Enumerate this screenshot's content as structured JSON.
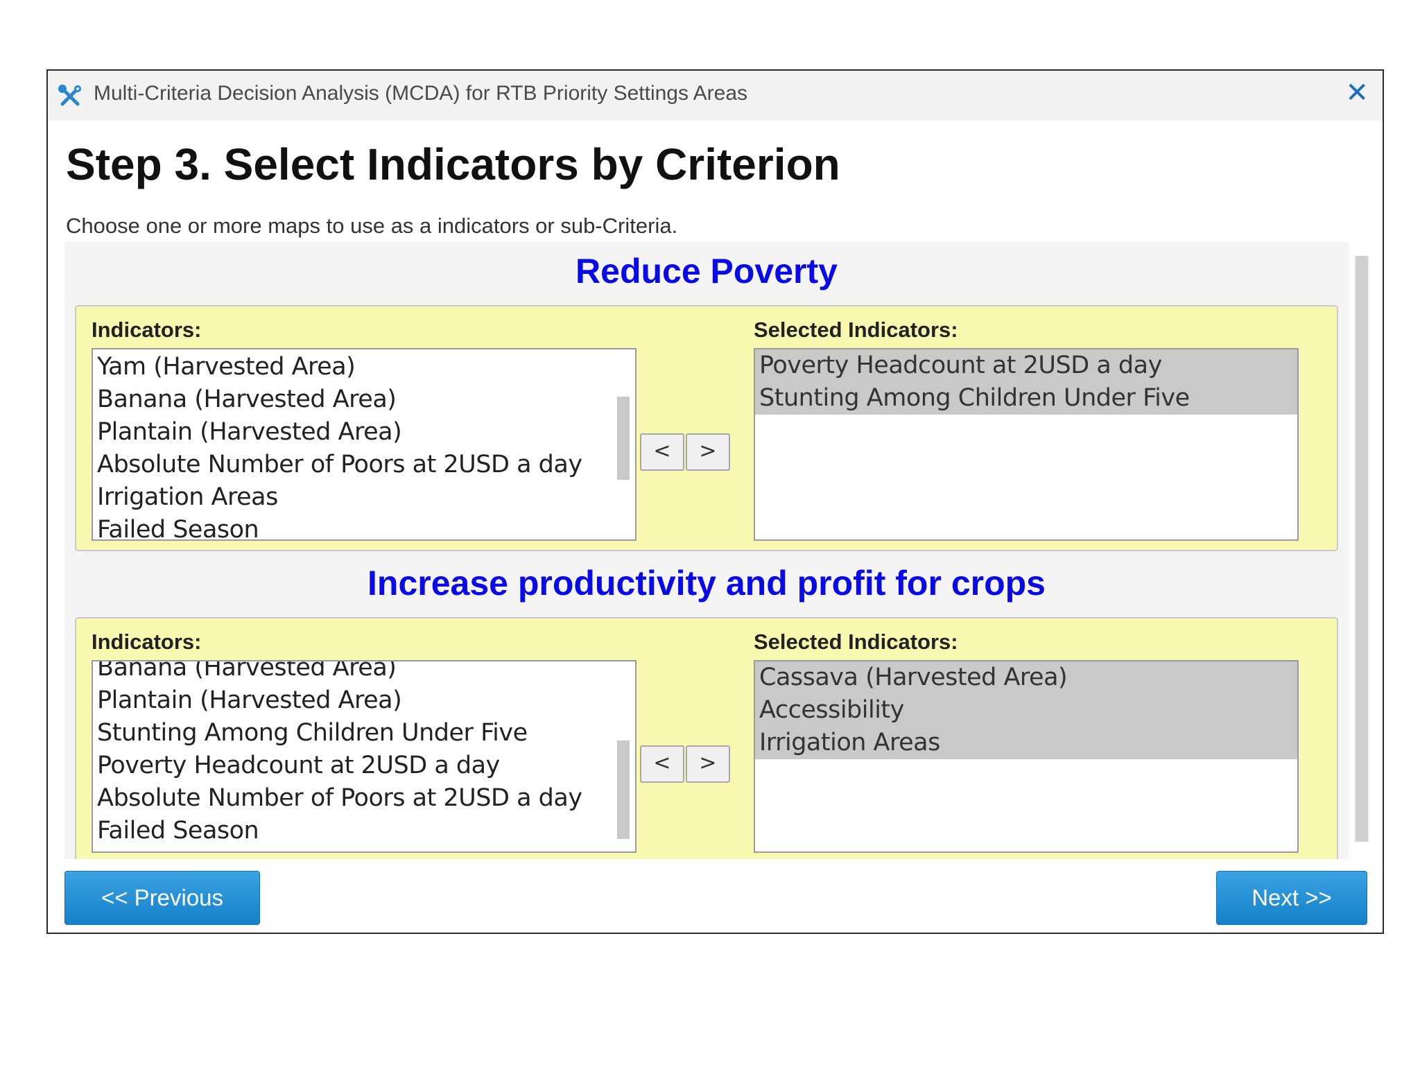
{
  "window": {
    "title": "Multi-Criteria Decision Analysis (MCDA) for RTB Priority Settings Areas",
    "close_icon": "close-icon",
    "app_icon": "tools-icon"
  },
  "step": {
    "title": "Step 3. Select Indicators by Criterion",
    "description": "Choose one or more maps to use as a indicators or sub-Criteria."
  },
  "criteria": [
    {
      "title": "Reduce Poverty",
      "indicators_label": "Indicators:",
      "selected_label": "Selected Indicators:",
      "indicators": [
        "Yam (Harvested Area)",
        "Banana (Harvested Area)",
        "Plantain (Harvested Area)",
        "Absolute Number of Poors at 2USD a day",
        "Irrigation Areas",
        "Failed Season"
      ],
      "selected": [
        "Poverty Headcount at 2USD a day",
        "Stunting Among Children Under Five"
      ],
      "move_left": "<",
      "move_right": ">"
    },
    {
      "title": "Increase productivity and profit for crops",
      "indicators_label": "Indicators:",
      "selected_label": "Selected Indicators:",
      "indicators": [
        "Banana (Harvested Area)",
        "Plantain (Harvested Area)",
        "Stunting Among Children Under Five",
        "Poverty Headcount at 2USD a day",
        "Absolute Number of Poors at 2USD a day",
        "Failed Season"
      ],
      "selected": [
        "Cassava (Harvested Area)",
        "Accessibility",
        "Irrigation Areas"
      ],
      "move_left": "<",
      "move_right": ">"
    }
  ],
  "buttons": {
    "previous": "<< Previous",
    "next": "Next >>"
  }
}
